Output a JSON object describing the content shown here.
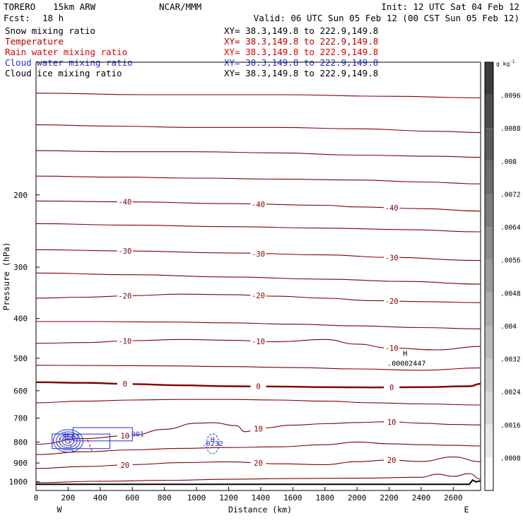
{
  "header": {
    "model": "TORERO",
    "resolution": "15km ARW",
    "center": "NCAR/MMM",
    "init": "Init: 12 UTC Sat 04 Feb 12",
    "fcst_label": "Fcst:",
    "fcst_value": "18 h",
    "valid": "Valid: 06 UTC Sun 05 Feb 12 (00 CST Sun 05 Feb 12)"
  },
  "fields": [
    {
      "name": "Snow mixing ratio",
      "color": "#000000",
      "xy": ""
    },
    {
      "name": "Temperature",
      "color": "#b40000",
      "xy": "XY=  38.3,149.8 to 222.9,149.8"
    },
    {
      "name": "Rain water mixing ratio",
      "color": "#dd0000",
      "xy": "XY=  38.3,149.8 to 222.9,149.8"
    },
    {
      "name": "Cloud water mixing ratio",
      "color": "#1e32d2",
      "xy": "XY=  38.3,149.8 to 222.9,149.8"
    },
    {
      "name": "Cloud ice mixing ratio",
      "color": "#000000",
      "xy": "XY=  38.3,149.8 to 222.9,149.8"
    }
  ],
  "snow_xy": "XY=  38.3,149.8 to 222.9,149.8",
  "colorbar": {
    "unit": "g kg",
    "unit_exp": "-1",
    "ticks": [
      ".0096",
      ".0088",
      ".008",
      ".0072",
      ".0064",
      ".0056",
      ".0048",
      ".004",
      ".0032",
      ".0024",
      ".0016",
      ".0008"
    ]
  },
  "chart_data": {
    "type": "contour",
    "xlabel": "Distance (km)",
    "ylabel": "Pressure (hPa)",
    "xlim": [
      0,
      2770
    ],
    "ylim": [
      1050,
      95
    ],
    "yscale": "log",
    "x_ticks": [
      0,
      200,
      400,
      600,
      800,
      1000,
      1200,
      1400,
      1600,
      1800,
      2000,
      2200,
      2400,
      2600
    ],
    "y_ticks": [
      200,
      300,
      400,
      500,
      600,
      700,
      800,
      900,
      1000
    ],
    "x_end_labels": [
      "W",
      "E"
    ],
    "temperature_contours": [
      {
        "level": -55,
        "x": [
          0,
          700,
          1500,
          2200,
          2770
        ],
        "p": [
          113,
          114,
          114,
          115,
          116
        ]
      },
      {
        "level": -50,
        "x": [
          0,
          500,
          1000,
          1500,
          2000,
          2500,
          2770
        ],
        "p": [
          135,
          136,
          137,
          137,
          138,
          140,
          141
        ]
      },
      {
        "level": -45,
        "x": [
          0,
          500,
          1000,
          1500,
          2000,
          2500,
          2770
        ],
        "p": [
          156,
          157,
          157,
          158,
          160,
          161,
          162
        ]
      },
      {
        "level": -42,
        "x": [
          0,
          500,
          1000,
          1500,
          2000,
          2400,
          2770
        ],
        "p": [
          180,
          181,
          182,
          183,
          184,
          186,
          188
        ]
      },
      {
        "level": -40,
        "label": "-40",
        "x": [
          0,
          600,
          1200,
          1800,
          2000,
          2400,
          2770
        ],
        "p": [
          207,
          208,
          210,
          212,
          214,
          216,
          219
        ]
      },
      {
        "level": -35,
        "x": [
          0,
          600,
          1200,
          1800,
          2300,
          2770
        ],
        "p": [
          235,
          237,
          239,
          241,
          243,
          246
        ]
      },
      {
        "level": -30,
        "label": "-30",
        "x": [
          0,
          600,
          1200,
          1800,
          2200,
          2770
        ],
        "p": [
          272,
          274,
          277,
          280,
          284,
          289
        ]
      },
      {
        "level": -25,
        "x": [
          0,
          600,
          1200,
          1800,
          2300,
          2770
        ],
        "p": [
          310,
          313,
          317,
          321,
          325,
          330
        ]
      },
      {
        "level": -20,
        "label": "-20",
        "x": [
          0,
          300,
          600,
          900,
          1200,
          1500,
          1800,
          2100,
          2400,
          2770
        ],
        "p": [
          357,
          355,
          352,
          349,
          350,
          353,
          357,
          362,
          364,
          366
        ]
      },
      {
        "level": -15,
        "x": [
          0,
          400,
          800,
          1200,
          1600,
          2000,
          2400,
          2770
        ],
        "p": [
          407,
          407,
          408,
          410,
          413,
          417,
          421,
          424
        ]
      },
      {
        "level": -10,
        "label": "-10",
        "x": [
          0,
          300,
          600,
          900,
          1200,
          1500,
          1800,
          2000,
          2200,
          2500,
          2770
        ],
        "p": [
          460,
          458,
          453,
          450,
          452,
          456,
          450,
          462,
          472,
          477,
          468
        ]
      },
      {
        "level": -5,
        "x": [
          0,
          400,
          800,
          1200,
          1600,
          2000,
          2400,
          2770
        ],
        "p": [
          520,
          521,
          522,
          524,
          527,
          531,
          535,
          528
        ]
      },
      {
        "level": 0,
        "label": "0",
        "x": [
          0,
          300,
          600,
          900,
          1200,
          1500,
          1800,
          2100,
          2400,
          2700,
          2770
        ],
        "p": [
          572,
          574,
          578,
          582,
          585,
          586,
          588,
          589,
          588,
          585,
          577
        ]
      },
      {
        "level": 5,
        "x": [
          0,
          300,
          600,
          900,
          1200,
          1500,
          1800,
          2100,
          2400,
          2770
        ],
        "p": [
          642,
          636,
          632,
          630,
          630,
          632,
          636,
          642,
          646,
          650
        ]
      },
      {
        "level": 10,
        "label": "10",
        "x": [
          0,
          300,
          600,
          800,
          1000,
          1100,
          1250,
          1300,
          1400,
          1600,
          1800,
          2000,
          2200,
          2400,
          2600,
          2770
        ],
        "p": [
          810,
          785,
          770,
          745,
          720,
          718,
          730,
          755,
          740,
          728,
          722,
          717,
          714,
          720,
          725,
          727
        ]
      },
      {
        "level": 15,
        "x": [
          0,
          300,
          600,
          900,
          1200,
          1500,
          1800,
          2000,
          2200,
          2400,
          2600,
          2770
        ],
        "p": [
          858,
          845,
          836,
          829,
          825,
          822,
          812,
          800,
          808,
          812,
          815,
          818
        ]
      },
      {
        "level": 20,
        "label": "20",
        "x": [
          0,
          300,
          600,
          900,
          1200,
          1500,
          1800,
          2000,
          2200,
          2400,
          2600,
          2770
        ],
        "p": [
          928,
          918,
          908,
          898,
          894,
          904,
          908,
          893,
          885,
          892,
          870,
          893
        ]
      },
      {
        "level": 25,
        "x": [
          0,
          400,
          800,
          1200,
          1600,
          2000,
          2400,
          2500,
          2600,
          2700,
          2770
        ],
        "p": [
          1005,
          997,
          992,
          986,
          982,
          980,
          975,
          958,
          970,
          955,
          985
        ]
      }
    ],
    "cloud_water_labels": [
      {
        "text": "H",
        "x": 190,
        "p": 782
      },
      {
        "text": ".5667",
        "x": 205,
        "p": 790
      },
      {
        "text": ".001",
        "x": 620,
        "p": 775
      },
      {
        "text": "H",
        "x": 1100,
        "p": 800
      },
      {
        "text": ".0232",
        "x": 1100,
        "p": 818
      }
    ],
    "snow_max": {
      "text": "H",
      "value": ".00002447",
      "x": 2300,
      "p": 493
    },
    "terrain_hpa": 1014
  }
}
